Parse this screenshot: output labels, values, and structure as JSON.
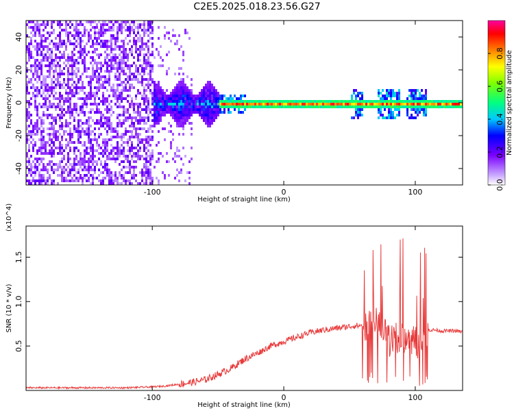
{
  "title": "C2E5.2025.018.23.56.G27",
  "colors": {
    "snr_line": "#e83a3a",
    "spectrogram_low": "#7b00ff",
    "spectrogram_high": "#ff0000"
  },
  "chart_data": [
    {
      "type": "heatmap",
      "xlabel": "Height of straight line (km)",
      "ylabel": "Frequency (Hz)",
      "xlim": [
        -196,
        136
      ],
      "ylim": [
        -50,
        50
      ],
      "xticks": [
        "-100",
        "0",
        "100"
      ],
      "yticks": [
        "-40",
        "-20",
        "0",
        "20",
        "40"
      ],
      "colorbar": {
        "label": "Normalized spectral amplitude",
        "range": [
          0,
          1
        ],
        "ticks": [
          "0.0",
          "0.2",
          "0.4",
          "0.6",
          "0.8"
        ],
        "colormap": "rainbow"
      },
      "regions": [
        {
          "x_range": [
            -196,
            -100
          ],
          "pattern": "broadband purple noise across all frequencies"
        },
        {
          "x_range": [
            -100,
            -50
          ],
          "pattern": "energy concentrated within about +/-10 Hz, cyan/green"
        },
        {
          "x_range": [
            -50,
            136
          ],
          "pattern": "narrow red band at 0 Hz with bursts near 55, 75-85, 95-105 km"
        }
      ],
      "grid": false
    },
    {
      "type": "line",
      "xlabel": "Height of straight line (km)",
      "ylabel": "SNR (10 * v/v)",
      "y_multiplier": "(x10^4)",
      "xlim": [
        -196,
        136
      ],
      "ylim": [
        0,
        1.85
      ],
      "xticks": [
        "-100",
        "0",
        "100"
      ],
      "yticks": [
        "0.5",
        "1.0",
        "1.5"
      ],
      "series": [
        {
          "x": [
            -196,
            -180,
            -160,
            -140,
            -120,
            -100,
            -90,
            -80,
            -70,
            -60,
            -50,
            -40,
            -30,
            -20,
            -10,
            0,
            10,
            20,
            30,
            40,
            50,
            55,
            60,
            65,
            70,
            75,
            80,
            85,
            90,
            95,
            100,
            105,
            110,
            115,
            120,
            130,
            136
          ],
          "y": [
            0.03,
            0.03,
            0.03,
            0.03,
            0.03,
            0.04,
            0.05,
            0.07,
            0.09,
            0.12,
            0.18,
            0.25,
            0.35,
            0.42,
            0.5,
            0.55,
            0.6,
            0.65,
            0.68,
            0.7,
            0.72,
            0.73,
            0.72,
            0.75,
            0.78,
            0.7,
            0.55,
            0.6,
            0.58,
            0.6,
            0.55,
            0.5,
            0.68,
            0.68,
            0.67,
            0.67,
            0.66
          ]
        }
      ],
      "grid": false
    }
  ]
}
